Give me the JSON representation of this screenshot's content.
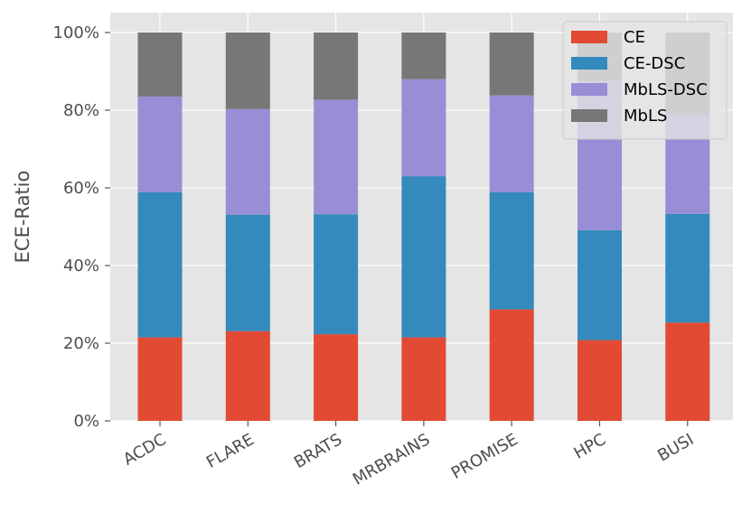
{
  "chart_data": {
    "type": "bar",
    "stacked": true,
    "categories": [
      "ACDC",
      "FLARE",
      "BRATS",
      "MRBRAINS",
      "PROMISE",
      "HPC",
      "BUSI"
    ],
    "series": [
      {
        "name": "CE",
        "color": "#e24a33",
        "values": [
          21.5,
          23.1,
          22.3,
          21.5,
          28.7,
          20.8,
          25.3
        ]
      },
      {
        "name": "CE-DSC",
        "color": "#348abd",
        "values": [
          37.4,
          30.0,
          30.9,
          41.5,
          30.2,
          28.3,
          28.0
        ]
      },
      {
        "name": "MbLS-DSC",
        "color": "#988ed5",
        "values": [
          24.6,
          27.2,
          29.5,
          25.0,
          24.9,
          38.4,
          25.4
        ]
      },
      {
        "name": "MbLS",
        "color": "#777777",
        "values": [
          16.5,
          19.7,
          17.3,
          12.0,
          16.2,
          12.5,
          21.3
        ]
      }
    ],
    "ylabel": "ECE-Ratio",
    "xlabel": "",
    "ylim": [
      0,
      100
    ],
    "yticks": [
      "0%",
      "20%",
      "40%",
      "60%",
      "80%",
      "100%"
    ],
    "grid": true,
    "legend_position": "top-right",
    "style": {
      "background": "#e5e5e5",
      "grid_color": "#ffffff"
    }
  }
}
